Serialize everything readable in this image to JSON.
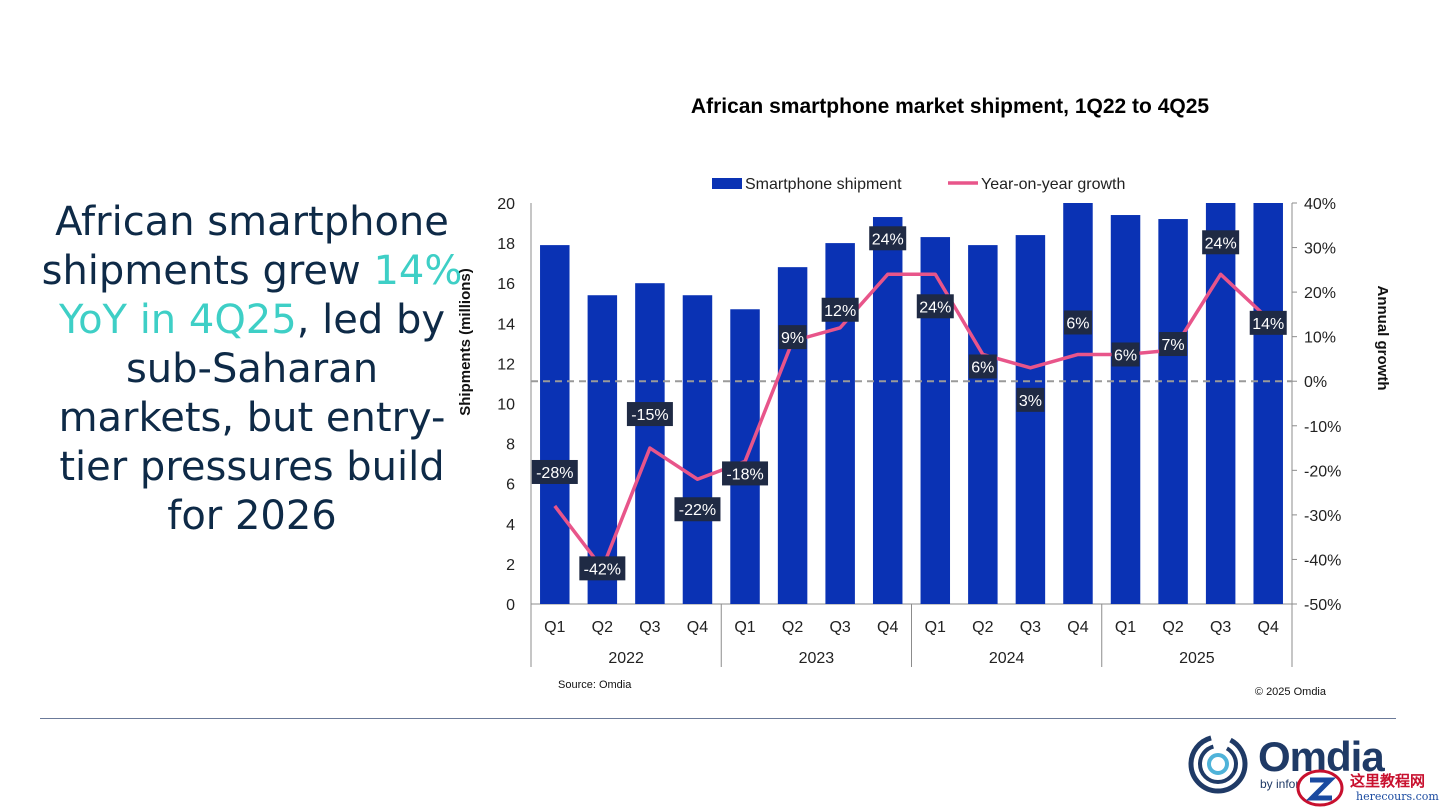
{
  "headline": {
    "part1": "African smartphone shipments grew ",
    "highlight": "14% YoY in 4Q25",
    "part2": ", led by sub-Saharan markets, but entry-tier pressures build for 2026"
  },
  "chart_data": {
    "type": "bar+line",
    "title": "African smartphone market shipment, 1Q22 to 4Q25",
    "categories": [
      "Q1",
      "Q2",
      "Q3",
      "Q4",
      "Q1",
      "Q2",
      "Q3",
      "Q4",
      "Q1",
      "Q2",
      "Q3",
      "Q4",
      "Q1",
      "Q2",
      "Q3",
      "Q4"
    ],
    "groups": [
      "2022",
      "2023",
      "2024",
      "2025"
    ],
    "series": [
      {
        "name": "Smartphone shipment",
        "type": "bar",
        "axis": "left",
        "values": [
          17.9,
          15.4,
          16.0,
          15.4,
          14.7,
          16.8,
          18.0,
          19.3,
          18.3,
          17.9,
          18.4,
          20.0,
          19.4,
          19.2,
          20.0,
          20.0
        ]
      },
      {
        "name": "Year-on-year growth",
        "type": "line",
        "axis": "right",
        "values": [
          -28,
          -42,
          -15,
          -22,
          -18,
          9,
          12,
          24,
          24,
          6,
          3,
          6,
          6,
          7,
          24,
          14
        ],
        "labels": [
          "-28%",
          "-42%",
          "-15%",
          "-22%",
          "-18%",
          "9%",
          "12%",
          "24%",
          "24%",
          "6%",
          "3%",
          "6%",
          "6%",
          "7%",
          "24%",
          "14%"
        ]
      }
    ],
    "ylabel": "Shipments (millions)",
    "y2label": "Annual growth",
    "ylim": [
      0,
      20
    ],
    "y2lim": [
      -50,
      40
    ],
    "yticks": [
      "0",
      "2",
      "4",
      "6",
      "8",
      "10",
      "12",
      "14",
      "16",
      "18",
      "20"
    ],
    "y2ticks": [
      "-50%",
      "-40%",
      "-30%",
      "-20%",
      "-10%",
      "0%",
      "10%",
      "20%",
      "30%",
      "40%"
    ],
    "source": "Source: Omdia",
    "copyright": "© 2025 Omdia",
    "colors": {
      "bar": "#0a32b4",
      "line": "#e8558a",
      "label_bg": "#1f2a44",
      "zero_line": "#9a9a9a"
    }
  },
  "logo": {
    "name": "Omdia",
    "by": "by informa"
  },
  "watermark": {
    "text": "这里教程网",
    "url": "herecours.com"
  }
}
